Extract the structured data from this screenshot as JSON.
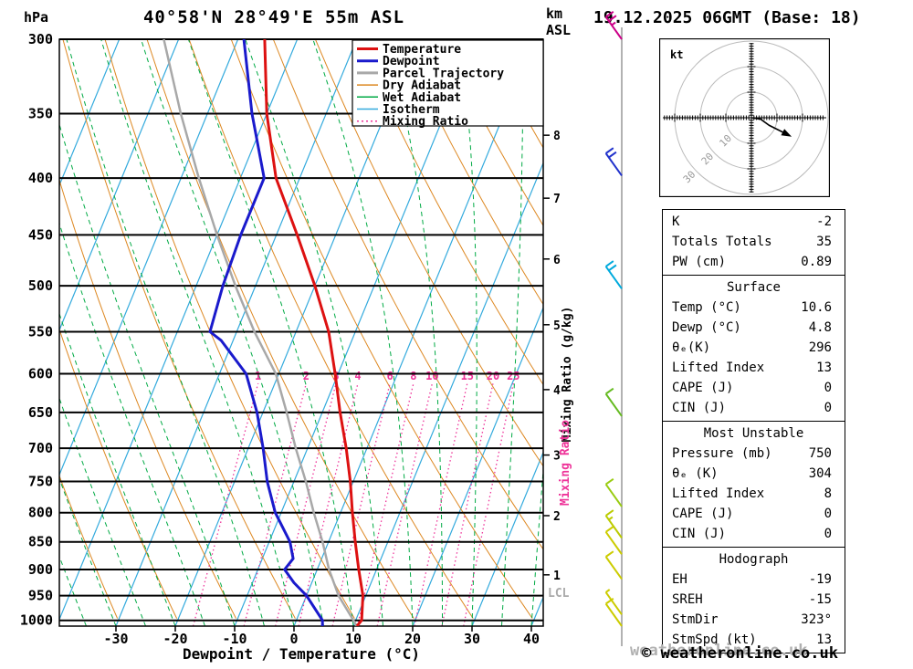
{
  "header": {
    "pressure_unit": "hPa",
    "station_title": "40°58'N 28°49'E 55m ASL",
    "altitude_unit_line1": "km",
    "altitude_unit_line2": "ASL",
    "date_title": "19.12.2025 06GMT (Base: 18)"
  },
  "axes": {
    "pressure_ticks": [
      300,
      350,
      400,
      450,
      500,
      550,
      600,
      650,
      700,
      750,
      800,
      850,
      900,
      950,
      1000
    ],
    "temp_ticks": [
      -30,
      -20,
      -10,
      0,
      10,
      20,
      30,
      40
    ],
    "x_label": "Dewpoint / Temperature (°C)",
    "km_ticks": [
      1,
      2,
      3,
      4,
      5,
      6,
      7,
      8
    ],
    "mixing_axis_label": "Mixing Ratio (g/kg)",
    "mixing_axis_label_pink": "Mixing Ratio",
    "lcl_label": "LCL"
  },
  "legend": {
    "items": [
      {
        "label": "Temperature",
        "color": "#dd1111",
        "width": 3,
        "dash": ""
      },
      {
        "label": "Dewpoint",
        "color": "#1a1acc",
        "width": 3,
        "dash": ""
      },
      {
        "label": "Parcel Trajectory",
        "color": "#a8a8a8",
        "width": 3,
        "dash": ""
      },
      {
        "label": "Dry Adiabat",
        "color": "#dd8822",
        "width": 1.5,
        "dash": ""
      },
      {
        "label": "Wet Adiabat",
        "color": "#00aa44",
        "width": 1.5,
        "dash": ""
      },
      {
        "label": "Isotherm",
        "color": "#33aadd",
        "width": 1.5,
        "dash": ""
      },
      {
        "label": "Mixing Ratio",
        "color": "#ee3399",
        "width": 1.5,
        "dash": "2,3"
      }
    ]
  },
  "chart_data": {
    "type": "skewt-log-p",
    "pressure_range_hpa": [
      300,
      1012
    ],
    "temp_axis_range_c": [
      -40,
      45
    ],
    "temperature_profile_p_c": [
      [
        1012,
        10.6
      ],
      [
        1000,
        11.0
      ],
      [
        950,
        9.5
      ],
      [
        900,
        7.0
      ],
      [
        850,
        4.5
      ],
      [
        800,
        2.0
      ],
      [
        750,
        -0.5
      ],
      [
        700,
        -3.5
      ],
      [
        650,
        -7.0
      ],
      [
        600,
        -10.5
      ],
      [
        550,
        -14.5
      ],
      [
        500,
        -20.0
      ],
      [
        450,
        -26.5
      ],
      [
        400,
        -34.0
      ],
      [
        350,
        -40.0
      ],
      [
        300,
        -45.5
      ]
    ],
    "dewpoint_profile_p_c": [
      [
        1012,
        4.8
      ],
      [
        1000,
        4.4
      ],
      [
        950,
        0.0
      ],
      [
        925,
        -3.0
      ],
      [
        900,
        -5.5
      ],
      [
        880,
        -4.8
      ],
      [
        850,
        -6.5
      ],
      [
        800,
        -11.0
      ],
      [
        750,
        -14.5
      ],
      [
        700,
        -17.5
      ],
      [
        650,
        -21.0
      ],
      [
        600,
        -25.5
      ],
      [
        560,
        -32.0
      ],
      [
        550,
        -34.5
      ],
      [
        500,
        -35.5
      ],
      [
        450,
        -36.0
      ],
      [
        400,
        -36.0
      ],
      [
        350,
        -42.5
      ],
      [
        300,
        -49.0
      ]
    ],
    "parcel_profile_p_c": [
      [
        1012,
        10.6
      ],
      [
        950,
        5.4
      ],
      [
        900,
        2.0
      ],
      [
        850,
        -1.0
      ],
      [
        800,
        -4.5
      ],
      [
        750,
        -8.0
      ],
      [
        700,
        -12.0
      ],
      [
        650,
        -16.0
      ],
      [
        600,
        -20.5
      ],
      [
        550,
        -27.0
      ],
      [
        500,
        -33.4
      ],
      [
        450,
        -40.0
      ],
      [
        400,
        -47.0
      ],
      [
        350,
        -54.5
      ],
      [
        300,
        -62.5
      ]
    ],
    "mixing_ratio_lines_gkg": [
      1,
      2,
      3,
      4,
      6,
      8,
      10,
      15,
      20,
      25
    ],
    "isotherms_c": {
      "start": -80,
      "end": 40,
      "step": 10
    },
    "dry_adiabats_theta_c": {
      "start": -40,
      "end": 120,
      "step": 10
    },
    "wet_adiabats_t1000_c": {
      "start": -40,
      "end": 40,
      "step": 5
    },
    "km_tick_pressures_hpa": [
      910,
      805,
      710,
      620,
      542,
      473,
      417,
      366
    ],
    "lcl_pressure_hpa": 945,
    "wind_barbs": [
      {
        "p": 300,
        "kt": 25,
        "color": "#cc0088"
      },
      {
        "p": 398,
        "kt": 20,
        "color": "#2233cc"
      },
      {
        "p": 503,
        "kt": 20,
        "color": "#00aadd"
      },
      {
        "p": 655,
        "kt": 10,
        "color": "#66bb22"
      },
      {
        "p": 790,
        "kt": 10,
        "color": "#99cc11"
      },
      {
        "p": 843,
        "kt": 15,
        "color": "#bbcc00"
      },
      {
        "p": 872,
        "kt": 10,
        "color": "#cccc00"
      },
      {
        "p": 918,
        "kt": 10,
        "color": "#cccc00"
      },
      {
        "p": 988,
        "kt": 5,
        "color": "#cccc00"
      },
      {
        "p": 1012,
        "kt": 10,
        "color": "#cccc00"
      }
    ],
    "hodograph": {
      "unit": "kt",
      "rings_kt": [
        10,
        20,
        30
      ],
      "trace_uv_kt": [
        [
          0,
          0
        ],
        [
          3.5,
          0.5
        ],
        [
          7,
          3
        ],
        [
          13.2,
          6.1
        ]
      ],
      "storm_dir_deg": 323,
      "storm_speed_kt": 13
    }
  },
  "info_panel": {
    "sections": [
      {
        "header": null,
        "rows": [
          [
            "K",
            "-2"
          ],
          [
            "Totals Totals",
            "35"
          ],
          [
            "PW (cm)",
            "0.89"
          ]
        ]
      },
      {
        "header": "Surface",
        "rows": [
          [
            "Temp (°C)",
            "10.6"
          ],
          [
            "Dewp (°C)",
            "4.8"
          ],
          [
            "θₑ(K)",
            "296"
          ],
          [
            "Lifted Index",
            "13"
          ],
          [
            "CAPE (J)",
            "0"
          ],
          [
            "CIN (J)",
            "0"
          ]
        ]
      },
      {
        "header": "Most Unstable",
        "rows": [
          [
            "Pressure (mb)",
            "750"
          ],
          [
            "θₑ (K)",
            "304"
          ],
          [
            "Lifted Index",
            "8"
          ],
          [
            "CAPE (J)",
            "0"
          ],
          [
            "CIN (J)",
            "0"
          ]
        ]
      },
      {
        "header": "Hodograph",
        "rows": [
          [
            "EH",
            "-19"
          ],
          [
            "SREH",
            "-15"
          ],
          [
            "StmDir",
            "323°"
          ],
          [
            "StmSpd (kt)",
            "13"
          ]
        ]
      }
    ]
  },
  "footer": {
    "copyright": "© weatheronline.co.uk",
    "watermark": "weatheronline.co.uk"
  },
  "colors": {
    "temperature": "#dd1111",
    "dewpoint": "#1a1acc",
    "parcel": "#a8a8a8",
    "dry_adiabat": "#dd8822",
    "wet_adiabat": "#00aa44",
    "isotherm": "#33aadd",
    "mixing_ratio": "#ee3399",
    "grid": "#000000",
    "barb_line": "#999999",
    "lcl": "#aaaaaa",
    "ring": "#bbbbbb",
    "ring_label": "#999999"
  }
}
